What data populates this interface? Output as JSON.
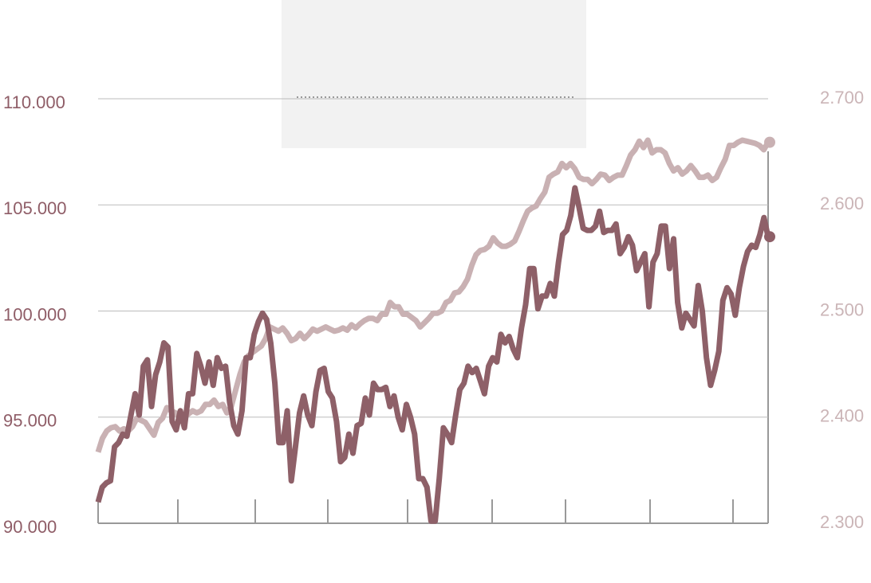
{
  "chart_data": {
    "type": "line",
    "ylim": [
      90000,
      110000
    ],
    "yticks": [
      {
        "value": 90000,
        "label": "90.000"
      },
      {
        "value": 95000,
        "label": "95.000"
      },
      {
        "value": 100000,
        "label": "100.000"
      },
      {
        "value": 105000,
        "label": "105.000"
      },
      {
        "value": 110000,
        "label": "110.000"
      }
    ],
    "y2lim": [
      2300,
      2700
    ],
    "y2ticks": [
      {
        "value": 2300,
        "label": "2.300"
      },
      {
        "value": 2400,
        "label": "2.400"
      },
      {
        "value": 2500,
        "label": "2.500"
      },
      {
        "value": 2600,
        "label": "2.600"
      },
      {
        "value": 2700,
        "label": "2.700"
      }
    ],
    "grid": true,
    "series": [
      {
        "color": "#8e6068",
        "values": [
          91000,
          91700,
          91900,
          92000,
          93600,
          93800,
          94200,
          94100,
          95100,
          96100,
          95100,
          97400,
          97700,
          95500,
          97000,
          97600,
          98500,
          98300,
          94800,
          94400,
          95300,
          94500,
          96100,
          96100,
          98000,
          97400,
          96600,
          97600,
          96500,
          97800,
          97300,
          97400,
          95700,
          94600,
          94200,
          95300,
          97800,
          97800,
          98900,
          99500,
          99900,
          99600,
          98500,
          96600,
          93800,
          93800,
          95300,
          92000,
          93600,
          95200,
          96000,
          95100,
          94600,
          96200,
          97200,
          97300,
          96200,
          95900,
          94800,
          92900,
          93100,
          94200,
          93300,
          94600,
          94700,
          95900,
          95100,
          96600,
          96300,
          96300,
          96400,
          95500,
          96000,
          95000,
          94400,
          95600,
          95000,
          94200,
          92100,
          92100,
          91700,
          90100,
          90100,
          92100,
          94500,
          94200,
          93800,
          95100,
          96300,
          96600,
          97400,
          97100,
          97300,
          96700,
          96100,
          97400,
          97800,
          97600,
          98900,
          98500,
          98800,
          98200,
          97800,
          99200,
          100300,
          102000,
          102000,
          100100,
          100700,
          100700,
          101300,
          100700,
          102300,
          103600,
          103800,
          104500,
          105800,
          104900,
          103900,
          103800,
          103800,
          104000,
          104700,
          103700,
          103800,
          103800,
          104100,
          102700,
          103000,
          103500,
          103100,
          101900,
          102300,
          102700,
          100200,
          102300,
          102700,
          104000,
          104000,
          102000,
          103400,
          100400,
          99200,
          99900,
          99600,
          99300,
          101200,
          100000,
          97800,
          96500,
          97200,
          98100,
          100500,
          101100,
          100800,
          99800,
          101100,
          102100,
          102800,
          103100,
          103000,
          103600,
          104400,
          103500
        ]
      },
      {
        "color": "#c9b1b3",
        "axis": "y2",
        "values": [
          2367,
          2380,
          2387,
          2390,
          2391,
          2387,
          2389,
          2387,
          2391,
          2399,
          2397,
          2395,
          2389,
          2383,
          2395,
          2399,
          2409,
          2406,
          2404,
          2399,
          2401,
          2403,
          2406,
          2404,
          2406,
          2412,
          2412,
          2416,
          2410,
          2412,
          2404,
          2410,
          2425,
          2440,
          2452,
          2458,
          2461,
          2464,
          2467,
          2474,
          2485,
          2483,
          2481,
          2484,
          2479,
          2472,
          2474,
          2479,
          2474,
          2478,
          2483,
          2481,
          2483,
          2485,
          2483,
          2481,
          2482,
          2484,
          2482,
          2487,
          2484,
          2488,
          2491,
          2493,
          2493,
          2491,
          2497,
          2497,
          2508,
          2504,
          2504,
          2497,
          2497,
          2494,
          2491,
          2485,
          2489,
          2493,
          2498,
          2498,
          2500,
          2508,
          2510,
          2517,
          2518,
          2523,
          2530,
          2543,
          2553,
          2557,
          2558,
          2561,
          2569,
          2564,
          2561,
          2561,
          2563,
          2566,
          2575,
          2585,
          2594,
          2597,
          2599,
          2606,
          2612,
          2626,
          2629,
          2631,
          2639,
          2635,
          2639,
          2634,
          2626,
          2624,
          2624,
          2620,
          2624,
          2629,
          2628,
          2623,
          2626,
          2628,
          2628,
          2637,
          2647,
          2652,
          2660,
          2654,
          2661,
          2649,
          2652,
          2652,
          2649,
          2639,
          2632,
          2635,
          2629,
          2632,
          2637,
          2632,
          2626,
          2626,
          2628,
          2623,
          2626,
          2635,
          2643,
          2656,
          2656,
          2659,
          2661,
          2660,
          2659,
          2658,
          2656,
          2652,
          2659
        ]
      }
    ]
  }
}
